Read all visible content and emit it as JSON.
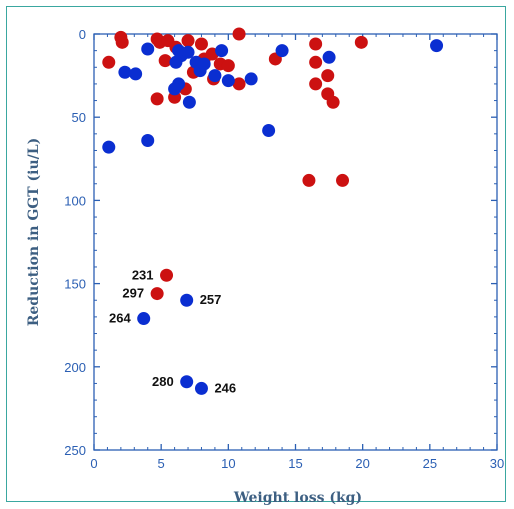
{
  "chart_data": {
    "type": "scatter",
    "title": "",
    "xlabel": "Weight loss (kg)",
    "ylabel": "Reduction in GGT (iu/L)",
    "xlim": [
      0,
      30
    ],
    "ylim": [
      0,
      250
    ],
    "y_inverted": true,
    "x_ticks": [
      0,
      5,
      10,
      15,
      20,
      25,
      30
    ],
    "y_ticks": [
      0,
      50,
      100,
      150,
      200,
      250
    ],
    "grid": false,
    "legend": "none",
    "colors": {
      "red": "#cc1111",
      "blue": "#0a2ed1",
      "axis": "#2b5fb3"
    },
    "series": [
      {
        "color": "red",
        "points": [
          {
            "x": 1.1,
            "y": 17
          },
          {
            "x": 2.0,
            "y": 2
          },
          {
            "x": 2.1,
            "y": 5
          },
          {
            "x": 4.7,
            "y": 3
          },
          {
            "x": 4.9,
            "y": 5
          },
          {
            "x": 5.5,
            "y": 4
          },
          {
            "x": 6.1,
            "y": 8
          },
          {
            "x": 7.0,
            "y": 4
          },
          {
            "x": 8.0,
            "y": 6
          },
          {
            "x": 8.2,
            "y": 15
          },
          {
            "x": 8.8,
            "y": 12
          },
          {
            "x": 9.4,
            "y": 18
          },
          {
            "x": 10.0,
            "y": 19
          },
          {
            "x": 10.8,
            "y": 0
          },
          {
            "x": 5.3,
            "y": 16
          },
          {
            "x": 7.4,
            "y": 23
          },
          {
            "x": 6.0,
            "y": 38
          },
          {
            "x": 4.7,
            "y": 39
          },
          {
            "x": 6.8,
            "y": 33
          },
          {
            "x": 8.9,
            "y": 27
          },
          {
            "x": 10.8,
            "y": 30
          },
          {
            "x": 13.5,
            "y": 15
          },
          {
            "x": 16.5,
            "y": 6
          },
          {
            "x": 16.5,
            "y": 17
          },
          {
            "x": 17.4,
            "y": 25
          },
          {
            "x": 16.5,
            "y": 30
          },
          {
            "x": 17.4,
            "y": 36
          },
          {
            "x": 17.8,
            "y": 41
          },
          {
            "x": 19.9,
            "y": 5
          },
          {
            "x": 16.0,
            "y": 88
          },
          {
            "x": 18.5,
            "y": 88
          },
          {
            "x": 5.4,
            "y": 145,
            "label": "231"
          },
          {
            "x": 4.7,
            "y": 156,
            "label": "297"
          }
        ]
      },
      {
        "color": "blue",
        "points": [
          {
            "x": 1.1,
            "y": 68
          },
          {
            "x": 2.3,
            "y": 23
          },
          {
            "x": 3.1,
            "y": 24
          },
          {
            "x": 4.0,
            "y": 9
          },
          {
            "x": 4.0,
            "y": 64
          },
          {
            "x": 6.3,
            "y": 10
          },
          {
            "x": 6.5,
            "y": 13
          },
          {
            "x": 7.0,
            "y": 11
          },
          {
            "x": 7.6,
            "y": 17
          },
          {
            "x": 6.1,
            "y": 17
          },
          {
            "x": 6.3,
            "y": 30
          },
          {
            "x": 6.0,
            "y": 33
          },
          {
            "x": 7.1,
            "y": 41
          },
          {
            "x": 7.9,
            "y": 22
          },
          {
            "x": 8.2,
            "y": 18
          },
          {
            "x": 9.0,
            "y": 25
          },
          {
            "x": 9.5,
            "y": 10
          },
          {
            "x": 10.0,
            "y": 28
          },
          {
            "x": 11.7,
            "y": 27
          },
          {
            "x": 13.0,
            "y": 58
          },
          {
            "x": 14.0,
            "y": 10
          },
          {
            "x": 17.5,
            "y": 14
          },
          {
            "x": 25.5,
            "y": 7
          },
          {
            "x": 6.9,
            "y": 160,
            "label": "257"
          },
          {
            "x": 3.7,
            "y": 171,
            "label": "264"
          },
          {
            "x": 6.9,
            "y": 209,
            "label": "280"
          },
          {
            "x": 8.0,
            "y": 213,
            "label": "246"
          }
        ]
      }
    ]
  }
}
